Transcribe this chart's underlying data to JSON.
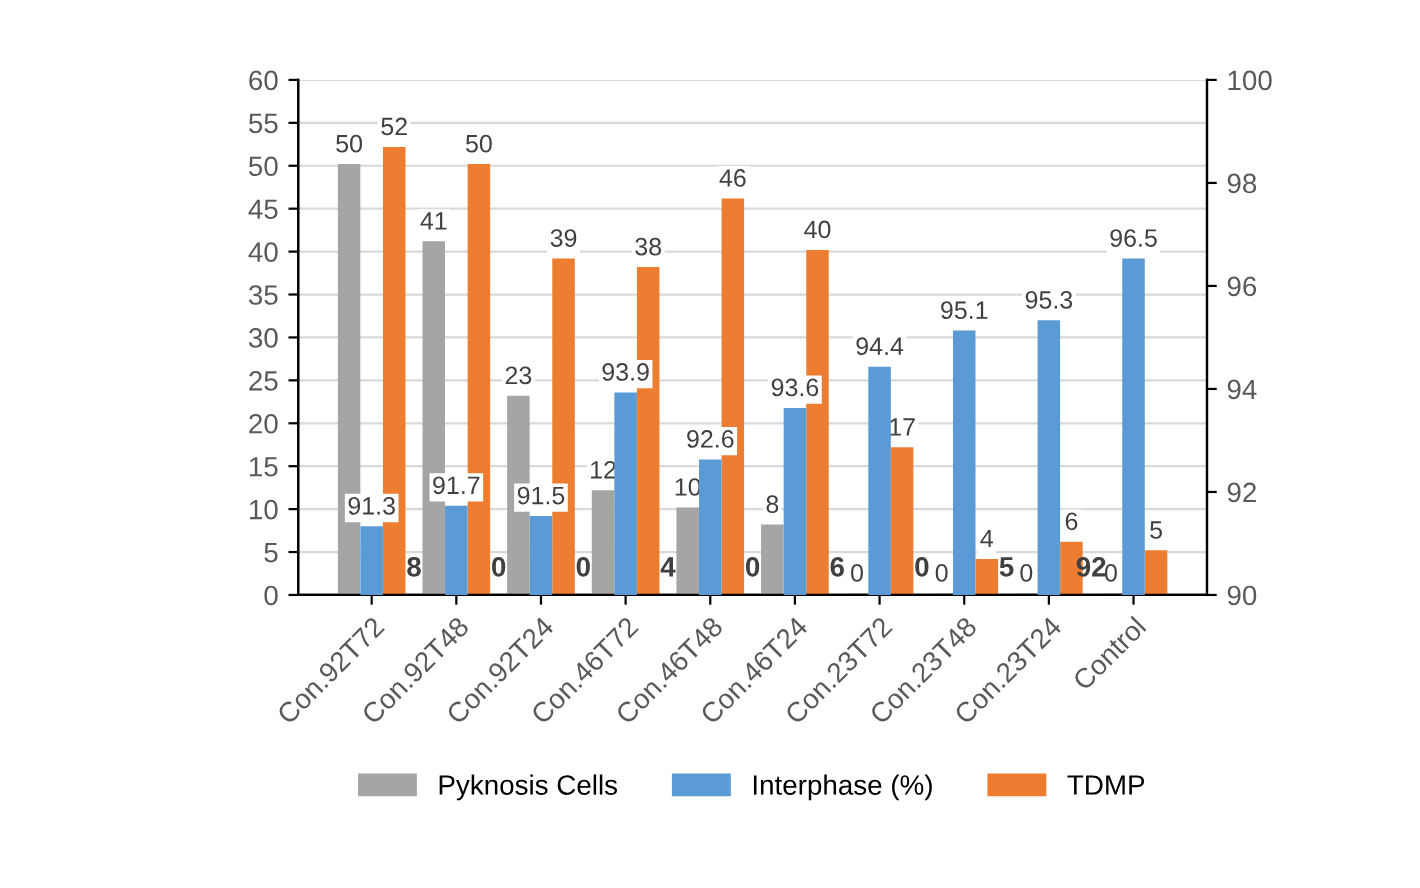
{
  "chart_data": {
    "type": "bar",
    "categories": [
      "Con.92T72",
      "Con.92T48",
      "Con.92T24",
      "Con.46T72",
      "Con.46T48",
      "Con.46T24",
      "Con.23T72",
      "Con.23T48",
      "Con.23T24",
      "Control"
    ],
    "series": [
      {
        "name": "Pyknosis Cells",
        "color": "#a5a5a5",
        "values": [
          50,
          41,
          23,
          12,
          10,
          8,
          0,
          0,
          0,
          0
        ]
      },
      {
        "name": "Interphase (%)",
        "color": "#5b9bd5",
        "axis": "y2",
        "values": [
          91.3,
          91.7,
          91.5,
          93.9,
          92.6,
          93.6,
          94.4,
          95.1,
          95.3,
          96.5
        ]
      },
      {
        "name": "TDMP",
        "color": "#ed7d31",
        "values": [
          52,
          50,
          39,
          38,
          46,
          40,
          17,
          4,
          6,
          5
        ]
      }
    ],
    "ylim": [
      0,
      60
    ],
    "yticks": [
      0,
      5,
      10,
      15,
      20,
      25,
      30,
      35,
      40,
      45,
      50,
      55,
      60
    ],
    "y2lim": [
      90,
      100
    ],
    "y2ticks": [
      90,
      92,
      94,
      96,
      98,
      100
    ],
    "data_labels": true,
    "grid": "y",
    "legend": "bottom",
    "annotations": [
      "8",
      "0",
      "0",
      "4",
      "0",
      "6",
      "0",
      "5",
      "92"
    ]
  }
}
